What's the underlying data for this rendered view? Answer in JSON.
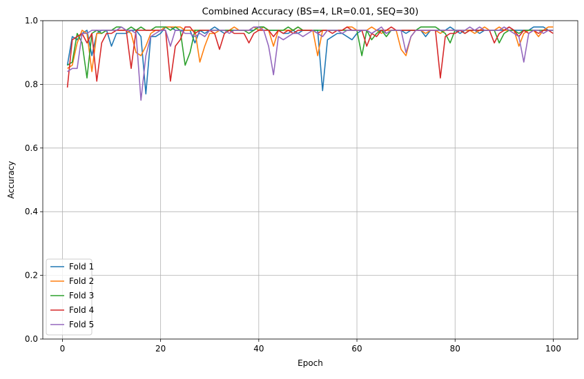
{
  "chart_data": {
    "type": "line",
    "title": "Combined Accuracy (BS=4, LR=0.01, SEQ=30)",
    "xlabel": "Epoch",
    "ylabel": "Accuracy",
    "xlim": [
      -4,
      105
    ],
    "ylim": [
      0,
      1
    ],
    "xticks": [
      0,
      20,
      40,
      60,
      80,
      100
    ],
    "yticks": [
      0.0,
      0.2,
      0.4,
      0.6,
      0.8,
      1.0
    ],
    "xtick_labels": [
      "0",
      "20",
      "40",
      "60",
      "80",
      "100"
    ],
    "ytick_labels": [
      "0.0",
      "0.2",
      "0.4",
      "0.6",
      "0.8",
      "1.0"
    ],
    "grid": true,
    "legend_position": "lower-left",
    "x": [
      1,
      2,
      3,
      4,
      5,
      6,
      7,
      8,
      9,
      10,
      11,
      12,
      13,
      14,
      15,
      16,
      17,
      18,
      19,
      20,
      21,
      22,
      23,
      24,
      25,
      26,
      27,
      28,
      29,
      30,
      31,
      32,
      33,
      34,
      35,
      36,
      37,
      38,
      39,
      40,
      41,
      42,
      43,
      44,
      45,
      46,
      47,
      48,
      49,
      50,
      51,
      52,
      53,
      54,
      55,
      56,
      57,
      58,
      59,
      60,
      61,
      62,
      63,
      64,
      65,
      66,
      67,
      68,
      69,
      70,
      71,
      72,
      73,
      74,
      75,
      76,
      77,
      78,
      79,
      80,
      81,
      82,
      83,
      84,
      85,
      86,
      87,
      88,
      89,
      90,
      91,
      92,
      93,
      94,
      95,
      96,
      97,
      98,
      99,
      100
    ],
    "series": [
      {
        "name": "Fold 1",
        "color": "#1f77b4",
        "values": [
          0.86,
          0.95,
          0.94,
          0.96,
          0.97,
          0.89,
          0.96,
          0.97,
          0.97,
          0.92,
          0.96,
          0.96,
          0.96,
          0.97,
          0.97,
          0.95,
          0.77,
          0.95,
          0.95,
          0.96,
          0.98,
          0.98,
          0.97,
          0.97,
          0.97,
          0.97,
          0.93,
          0.97,
          0.96,
          0.97,
          0.98,
          0.97,
          0.96,
          0.97,
          0.97,
          0.97,
          0.97,
          0.97,
          0.97,
          0.98,
          0.98,
          0.97,
          0.97,
          0.97,
          0.96,
          0.96,
          0.97,
          0.96,
          0.97,
          0.97,
          0.97,
          0.97,
          0.78,
          0.94,
          0.95,
          0.96,
          0.96,
          0.95,
          0.94,
          0.96,
          0.97,
          0.97,
          0.96,
          0.97,
          0.97,
          0.96,
          0.97,
          0.97,
          0.97,
          0.96,
          0.97,
          0.97,
          0.97,
          0.95,
          0.97,
          0.97,
          0.97,
          0.97,
          0.98,
          0.97,
          0.96,
          0.97,
          0.97,
          0.97,
          0.96,
          0.97,
          0.97,
          0.97,
          0.97,
          0.97,
          0.98,
          0.97,
          0.97,
          0.97,
          0.97,
          0.98,
          0.98,
          0.98,
          0.97,
          0.97
        ]
      },
      {
        "name": "Fold 2",
        "color": "#ff7f0e",
        "values": [
          0.85,
          0.86,
          0.93,
          0.97,
          0.96,
          0.84,
          0.96,
          0.96,
          0.97,
          0.97,
          0.97,
          0.97,
          0.97,
          0.96,
          0.9,
          0.89,
          0.92,
          0.96,
          0.97,
          0.97,
          0.98,
          0.98,
          0.98,
          0.98,
          0.97,
          0.97,
          0.97,
          0.87,
          0.92,
          0.96,
          0.96,
          0.97,
          0.97,
          0.97,
          0.98,
          0.97,
          0.97,
          0.97,
          0.98,
          0.97,
          0.98,
          0.97,
          0.92,
          0.97,
          0.97,
          0.97,
          0.97,
          0.98,
          0.97,
          0.97,
          0.97,
          0.89,
          0.97,
          0.97,
          0.97,
          0.97,
          0.97,
          0.98,
          0.98,
          0.97,
          0.97,
          0.97,
          0.98,
          0.97,
          0.96,
          0.97,
          0.97,
          0.97,
          0.91,
          0.89,
          0.95,
          0.97,
          0.97,
          0.96,
          0.97,
          0.97,
          0.96,
          0.97,
          0.97,
          0.97,
          0.97,
          0.97,
          0.97,
          0.96,
          0.97,
          0.98,
          0.97,
          0.97,
          0.98,
          0.97,
          0.97,
          0.97,
          0.92,
          0.96,
          0.97,
          0.97,
          0.95,
          0.97,
          0.98,
          0.98
        ]
      },
      {
        "name": "Fold 3",
        "color": "#2ca02c",
        "values": [
          0.86,
          0.87,
          0.96,
          0.93,
          0.82,
          0.96,
          0.97,
          0.96,
          0.97,
          0.97,
          0.98,
          0.98,
          0.97,
          0.98,
          0.97,
          0.98,
          0.97,
          0.97,
          0.98,
          0.98,
          0.98,
          0.97,
          0.98,
          0.97,
          0.86,
          0.9,
          0.97,
          0.97,
          0.97,
          0.97,
          0.97,
          0.97,
          0.97,
          0.97,
          0.97,
          0.97,
          0.97,
          0.96,
          0.97,
          0.98,
          0.98,
          0.97,
          0.97,
          0.97,
          0.97,
          0.98,
          0.97,
          0.98,
          0.97,
          0.97,
          0.97,
          0.97,
          0.97,
          0.97,
          0.97,
          0.97,
          0.97,
          0.97,
          0.97,
          0.97,
          0.89,
          0.97,
          0.94,
          0.96,
          0.97,
          0.95,
          0.97,
          0.97,
          0.97,
          0.97,
          0.97,
          0.97,
          0.98,
          0.98,
          0.98,
          0.98,
          0.97,
          0.96,
          0.93,
          0.97,
          0.97,
          0.96,
          0.97,
          0.97,
          0.97,
          0.97,
          0.97,
          0.97,
          0.93,
          0.96,
          0.97,
          0.97,
          0.96,
          0.97,
          0.97,
          0.97,
          0.97,
          0.97,
          0.97,
          0.97
        ]
      },
      {
        "name": "Fold 4",
        "color": "#d62728",
        "values": [
          0.79,
          0.94,
          0.95,
          0.96,
          0.93,
          0.96,
          0.81,
          0.93,
          0.96,
          0.96,
          0.97,
          0.97,
          0.97,
          0.85,
          0.97,
          0.97,
          0.97,
          0.97,
          0.97,
          0.97,
          0.97,
          0.81,
          0.92,
          0.94,
          0.98,
          0.98,
          0.96,
          0.97,
          0.97,
          0.97,
          0.96,
          0.91,
          0.96,
          0.97,
          0.96,
          0.96,
          0.96,
          0.93,
          0.96,
          0.97,
          0.97,
          0.97,
          0.95,
          0.97,
          0.96,
          0.97,
          0.96,
          0.97,
          0.97,
          0.97,
          0.97,
          0.96,
          0.97,
          0.97,
          0.96,
          0.97,
          0.97,
          0.98,
          0.97,
          0.97,
          0.97,
          0.92,
          0.96,
          0.95,
          0.97,
          0.97,
          0.98,
          0.97,
          0.97,
          0.97,
          0.97,
          0.97,
          0.97,
          0.97,
          0.97,
          0.97,
          0.82,
          0.95,
          0.96,
          0.96,
          0.97,
          0.96,
          0.97,
          0.97,
          0.97,
          0.97,
          0.97,
          0.93,
          0.96,
          0.97,
          0.98,
          0.97,
          0.95,
          0.97,
          0.96,
          0.97,
          0.96,
          0.97,
          0.97,
          0.96
        ]
      },
      {
        "name": "Fold 5",
        "color": "#9467bd",
        "values": [
          0.84,
          0.85,
          0.85,
          0.96,
          0.96,
          0.97,
          0.97,
          0.97,
          0.97,
          0.97,
          0.97,
          0.98,
          0.97,
          0.97,
          0.96,
          0.75,
          0.89,
          0.95,
          0.96,
          0.97,
          0.97,
          0.92,
          0.97,
          0.97,
          0.96,
          0.96,
          0.95,
          0.96,
          0.95,
          0.97,
          0.97,
          0.97,
          0.97,
          0.96,
          0.97,
          0.97,
          0.97,
          0.97,
          0.98,
          0.98,
          0.97,
          0.92,
          0.83,
          0.95,
          0.94,
          0.95,
          0.96,
          0.96,
          0.95,
          0.96,
          0.97,
          0.96,
          0.95,
          0.97,
          0.97,
          0.97,
          0.96,
          0.97,
          0.97,
          0.97,
          0.97,
          0.97,
          0.96,
          0.97,
          0.98,
          0.96,
          0.97,
          0.97,
          0.97,
          0.9,
          0.95,
          0.97,
          0.97,
          0.97,
          0.97,
          0.97,
          0.97,
          0.97,
          0.97,
          0.97,
          0.97,
          0.97,
          0.98,
          0.97,
          0.98,
          0.97,
          0.97,
          0.97,
          0.97,
          0.98,
          0.97,
          0.96,
          0.95,
          0.87,
          0.96,
          0.97,
          0.97,
          0.96,
          0.97,
          0.97
        ]
      }
    ]
  }
}
